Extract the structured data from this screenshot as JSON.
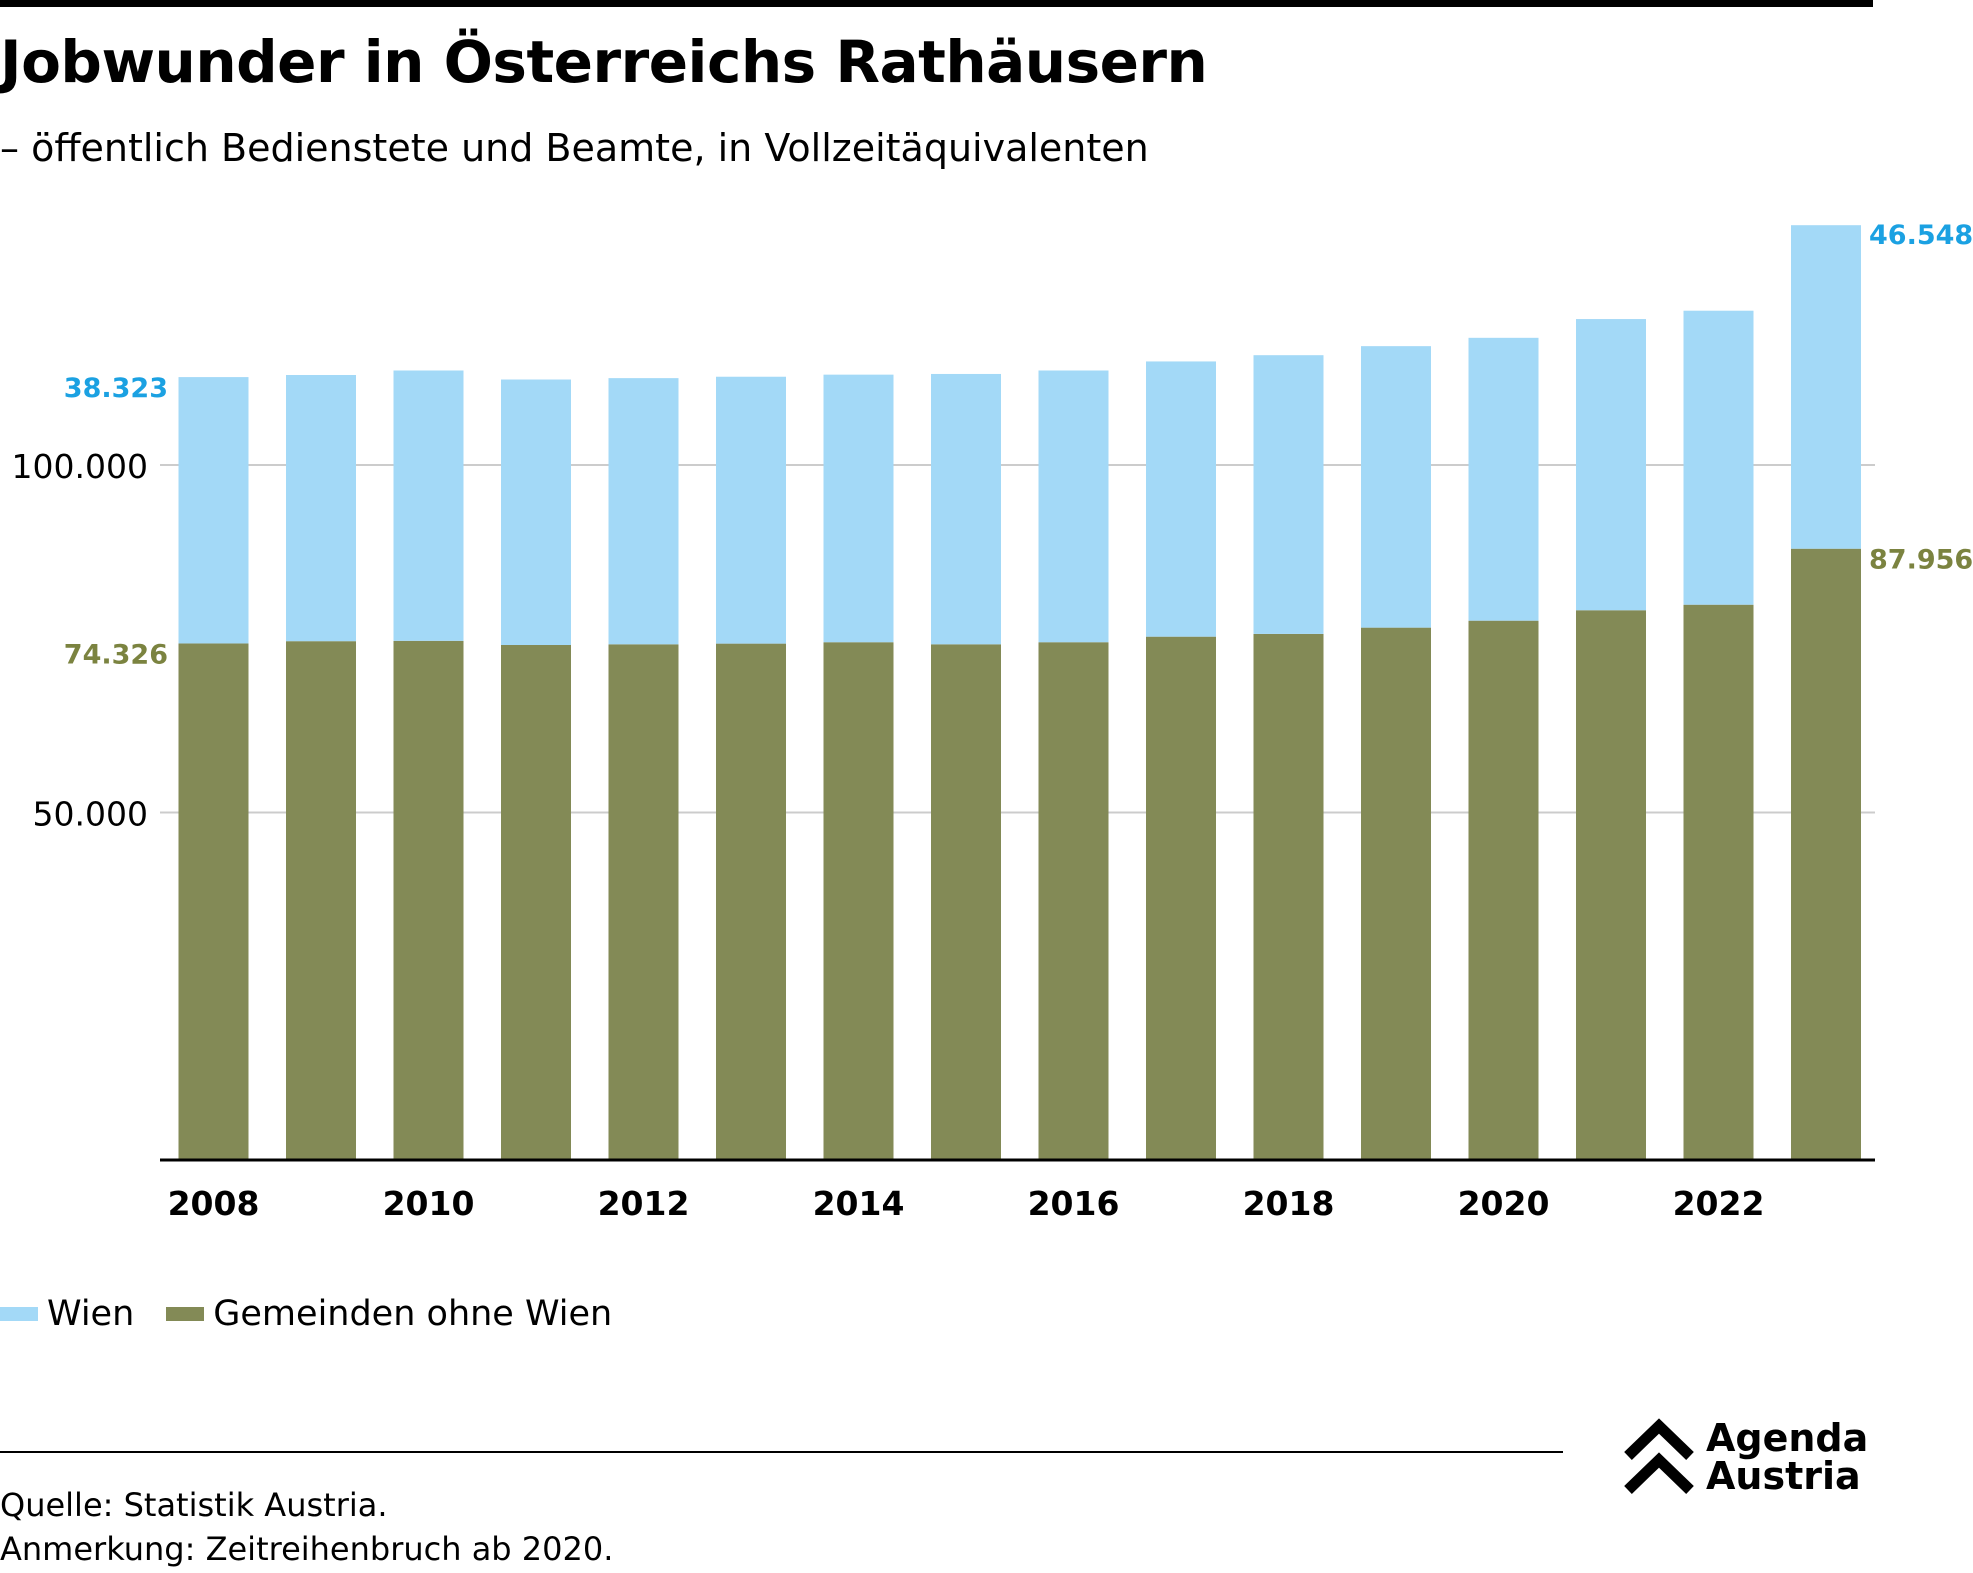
{
  "header": {
    "title": "Jobwunder in Österreichs Rathäusern",
    "subtitle": "– öffentlich Bedienstete und Beamte, in Vollzeitäquivalenten"
  },
  "colors": {
    "wien": "#a3d9f7",
    "gemeinden": "#838a56",
    "wien_label": "#1ba1e2",
    "gemeinden_label": "#7b8340",
    "grid": "#cccccc"
  },
  "chart_data": {
    "type": "bar",
    "stacked": true,
    "title": "Jobwunder in Österreichs Rathäusern",
    "subtitle": "– öffentlich Bedienstete und Beamte, in Vollzeitäquivalenten",
    "categories": [
      "2008",
      "2009",
      "2010",
      "2011",
      "2012",
      "2013",
      "2014",
      "2015",
      "2016",
      "2017",
      "2018",
      "2019",
      "2020",
      "2021",
      "2022",
      "2023"
    ],
    "x_tick_labels": [
      "2008",
      "2010",
      "2012",
      "2014",
      "2016",
      "2018",
      "2020",
      "2022"
    ],
    "series": [
      {
        "name": "Gemeinden ohne Wien",
        "color": "#838a56",
        "values": [
          74326,
          74650,
          74700,
          74100,
          74200,
          74300,
          74500,
          74200,
          74500,
          75300,
          75700,
          76600,
          77600,
          79100,
          79900,
          87956
        ]
      },
      {
        "name": "Wien",
        "color": "#a3d9f7",
        "values": [
          38323,
          38300,
          38900,
          38200,
          38300,
          38400,
          38500,
          38900,
          39100,
          39600,
          40100,
          40500,
          40700,
          41900,
          42300,
          46548
        ]
      }
    ],
    "y_ticks": [
      50000,
      100000
    ],
    "y_tick_labels": [
      "50.000",
      "100.000"
    ],
    "ylim": [
      0,
      136000
    ],
    "grid": true,
    "value_labels": {
      "first_gemeinden": "74.326",
      "first_wien": "38.323",
      "last_gemeinden": "87.956",
      "last_wien": "46.548"
    },
    "legend": {
      "position": "bottom-left",
      "items": [
        "Wien",
        "Gemeinden ohne Wien"
      ]
    }
  },
  "footer": {
    "source": "Quelle: Statistik Austria.",
    "note": "Anmerkung: Zeitreihenbruch ab 2020.",
    "logo": [
      "Agenda",
      "Austria"
    ]
  }
}
